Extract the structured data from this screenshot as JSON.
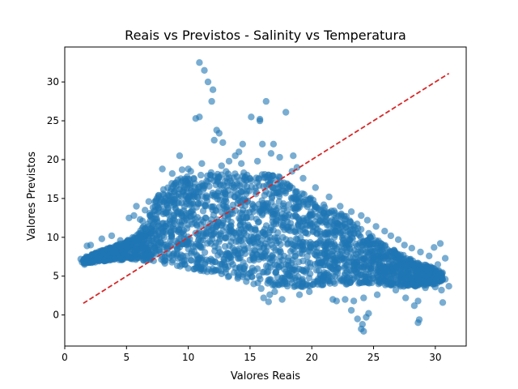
{
  "chart_data": {
    "type": "scatter",
    "title": "Reais vs Previstos - Salinity vs Temperatura",
    "xlabel": "Valores Reais",
    "ylabel": "Valores Previstos",
    "xlim": [
      0,
      32.5
    ],
    "ylim": [
      -4,
      34.5
    ],
    "xticks": [
      0,
      5,
      10,
      15,
      20,
      25,
      30
    ],
    "yticks": [
      0,
      5,
      10,
      15,
      20,
      25,
      30
    ],
    "grid": false,
    "legend": "none",
    "colors": {
      "points": "#1f77b4",
      "reference_line": "#d62728"
    },
    "reference_line": {
      "from": [
        1.5,
        1.5
      ],
      "to": [
        31.1,
        31.1
      ],
      "style": "dashed"
    },
    "density_band": {
      "upper": [
        [
          1.5,
          7.4
        ],
        [
          2.5,
          8.0
        ],
        [
          3.5,
          8.6
        ],
        [
          4.5,
          9.2
        ],
        [
          5.5,
          10.0
        ],
        [
          6.5,
          11.6
        ],
        [
          7.5,
          15.5
        ],
        [
          8.5,
          17.0
        ],
        [
          10,
          18.0
        ],
        [
          12,
          18.6
        ],
        [
          14,
          18.4
        ],
        [
          16,
          18.2
        ],
        [
          17.5,
          17.8
        ],
        [
          19,
          16.0
        ],
        [
          20.5,
          14.5
        ],
        [
          22,
          13.5
        ],
        [
          23.5,
          12.0
        ],
        [
          25,
          10.0
        ],
        [
          26.5,
          8.5
        ],
        [
          28,
          7.2
        ],
        [
          30,
          6.0
        ],
        [
          30.6,
          5.5
        ]
      ],
      "lower": [
        [
          1.5,
          6.6
        ],
        [
          2.5,
          6.8
        ],
        [
          3.5,
          7.0
        ],
        [
          4.5,
          7.1
        ],
        [
          5.5,
          7.1
        ],
        [
          6.5,
          7.0
        ],
        [
          7.5,
          6.8
        ],
        [
          8.5,
          6.5
        ],
        [
          10,
          6.0
        ],
        [
          12,
          5.3
        ],
        [
          14,
          4.6
        ],
        [
          16,
          4.0
        ],
        [
          17.5,
          3.6
        ],
        [
          19,
          3.6
        ],
        [
          20.5,
          3.8
        ],
        [
          22,
          3.9
        ],
        [
          23.5,
          4.0
        ],
        [
          25,
          3.9
        ],
        [
          26.5,
          3.7
        ],
        [
          28,
          3.6
        ],
        [
          30,
          4.0
        ],
        [
          30.6,
          4.4
        ]
      ]
    },
    "outliers": [
      [
        10.9,
        32.5
      ],
      [
        11.3,
        31.5
      ],
      [
        11.6,
        30.0
      ],
      [
        12.0,
        29.0
      ],
      [
        11.9,
        27.5
      ],
      [
        10.6,
        25.3
      ],
      [
        10.9,
        25.5
      ],
      [
        12.3,
        23.8
      ],
      [
        12.1,
        22.5
      ],
      [
        12.8,
        22.2
      ],
      [
        12.5,
        23.4
      ],
      [
        16.3,
        27.5
      ],
      [
        15.1,
        25.5
      ],
      [
        15.8,
        25.2
      ],
      [
        15.8,
        25.0
      ],
      [
        17.9,
        26.1
      ],
      [
        14.1,
        21.0
      ],
      [
        14.4,
        22.0
      ],
      [
        16.0,
        22.0
      ],
      [
        16.9,
        22.0
      ],
      [
        13.8,
        20.5
      ],
      [
        16.7,
        20.8
      ],
      [
        17.4,
        20.3
      ],
      [
        18.5,
        20.5
      ],
      [
        9.3,
        20.5
      ],
      [
        7.9,
        18.8
      ],
      [
        9.5,
        18.7
      ],
      [
        10.0,
        18.8
      ],
      [
        8.7,
        18.2
      ],
      [
        10.2,
        18.5
      ],
      [
        11.1,
        19.5
      ],
      [
        12.7,
        19.2
      ],
      [
        13.3,
        19.8
      ],
      [
        14.3,
        19.5
      ],
      [
        15.6,
        19.8
      ],
      [
        18.8,
        19.0
      ],
      [
        18.4,
        18.5
      ],
      [
        19.3,
        17.6
      ],
      [
        20.3,
        16.4
      ],
      [
        21.4,
        15.2
      ],
      [
        22.3,
        14.0
      ],
      [
        23.2,
        13.3
      ],
      [
        24.0,
        12.8
      ],
      [
        24.5,
        12.2
      ],
      [
        25.2,
        11.4
      ],
      [
        25.9,
        10.8
      ],
      [
        26.4,
        10.2
      ],
      [
        27.0,
        9.7
      ],
      [
        27.5,
        9.0
      ],
      [
        28.1,
        8.6
      ],
      [
        28.8,
        8.1
      ],
      [
        29.5,
        7.6
      ],
      [
        30.4,
        9.2
      ],
      [
        29.9,
        8.7
      ],
      [
        30.8,
        7.3
      ],
      [
        30.2,
        6.5
      ],
      [
        29.5,
        5.5
      ],
      [
        30.2,
        5.0
      ],
      [
        30.8,
        4.6
      ],
      [
        31.1,
        3.7
      ],
      [
        30.5,
        3.2
      ],
      [
        30.0,
        3.6
      ],
      [
        30.6,
        1.6
      ],
      [
        29.2,
        3.5
      ],
      [
        28.6,
        1.8
      ],
      [
        28.3,
        1.2
      ],
      [
        28.7,
        -0.6
      ],
      [
        28.6,
        -1.0
      ],
      [
        27.6,
        2.2
      ],
      [
        27.0,
        4.5
      ],
      [
        26.8,
        3.2
      ],
      [
        25.3,
        2.6
      ],
      [
        24.2,
        2.2
      ],
      [
        23.4,
        1.8
      ],
      [
        24.6,
        0.2
      ],
      [
        24.4,
        -0.3
      ],
      [
        24.1,
        -1.2
      ],
      [
        24.0,
        -1.8
      ],
      [
        24.2,
        -2.1
      ],
      [
        23.7,
        -0.5
      ],
      [
        23.2,
        0.6
      ],
      [
        22.7,
        2.0
      ],
      [
        22.0,
        1.8
      ],
      [
        21.7,
        2.0
      ],
      [
        20.4,
        4.3
      ],
      [
        19.8,
        3.0
      ],
      [
        19.0,
        2.6
      ],
      [
        17.6,
        2.0
      ],
      [
        17.0,
        3.0
      ],
      [
        16.5,
        1.7
      ],
      [
        16.1,
        2.2
      ],
      [
        16.6,
        2.6
      ],
      [
        15.9,
        3.4
      ],
      [
        15.3,
        4.0
      ],
      [
        14.7,
        4.3
      ],
      [
        14.0,
        4.7
      ],
      [
        13.3,
        5.0
      ],
      [
        12.7,
        5.3
      ],
      [
        11.9,
        5.6
      ],
      [
        11.0,
        5.9
      ],
      [
        10.0,
        6.0
      ],
      [
        9.5,
        6.5
      ],
      [
        6.3,
        12.1
      ],
      [
        5.2,
        12.5
      ],
      [
        5.6,
        12.8
      ],
      [
        6.1,
        12.3
      ],
      [
        5.8,
        14.0
      ],
      [
        6.5,
        13.5
      ],
      [
        6.8,
        14.6
      ],
      [
        3.8,
        10.2
      ],
      [
        3.0,
        9.8
      ],
      [
        4.5,
        9.6
      ],
      [
        2.1,
        9.0
      ],
      [
        1.8,
        8.9
      ],
      [
        1.4,
        6.8
      ],
      [
        1.3,
        7.2
      ],
      [
        1.6,
        6.5
      ]
    ]
  }
}
